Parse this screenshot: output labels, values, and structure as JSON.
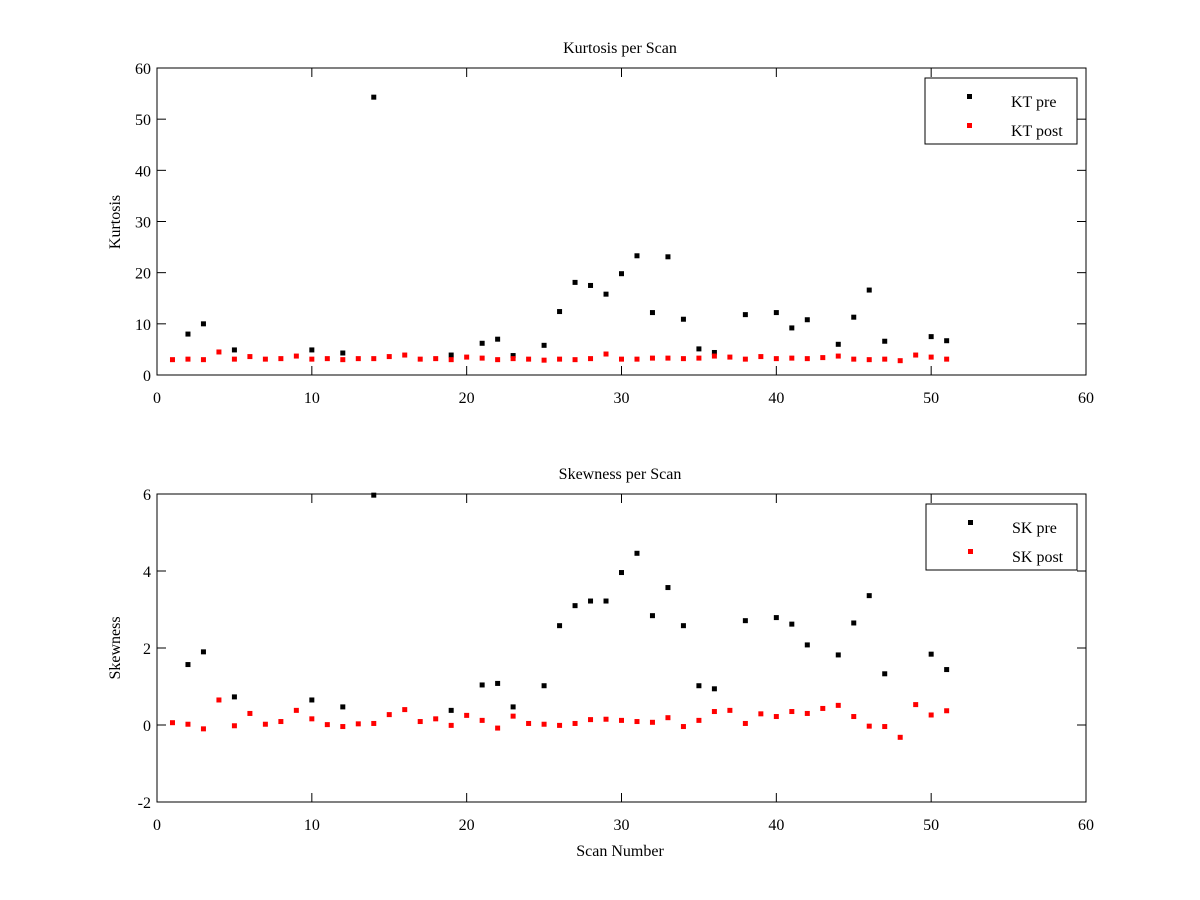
{
  "chart_data": [
    {
      "type": "scatter",
      "title": "Kurtosis per Scan",
      "xlabel": "",
      "ylabel": "Kurtosis",
      "xlim": [
        0,
        60
      ],
      "ylim": [
        0,
        60
      ],
      "xticks": [
        0,
        10,
        20,
        30,
        40,
        50,
        60
      ],
      "yticks": [
        0,
        10,
        20,
        30,
        40,
        50,
        60
      ],
      "legend_position": "top-right",
      "series": [
        {
          "name": "KT pre",
          "color": "#000000",
          "points": [
            [
              2,
              8.0
            ],
            [
              3,
              10.0
            ],
            [
              5,
              4.9
            ],
            [
              10,
              4.9
            ],
            [
              12,
              4.3
            ],
            [
              14,
              54.3
            ],
            [
              19,
              3.9
            ],
            [
              21,
              6.2
            ],
            [
              22,
              7.0
            ],
            [
              23,
              3.8
            ],
            [
              25,
              5.8
            ],
            [
              26,
              12.4
            ],
            [
              27,
              18.1
            ],
            [
              28,
              17.5
            ],
            [
              29,
              15.8
            ],
            [
              30,
              19.8
            ],
            [
              31,
              23.3
            ],
            [
              32,
              12.2
            ],
            [
              33,
              23.1
            ],
            [
              34,
              10.9
            ],
            [
              35,
              5.1
            ],
            [
              36,
              4.4
            ],
            [
              38,
              11.8
            ],
            [
              40,
              12.2
            ],
            [
              41,
              9.2
            ],
            [
              42,
              10.8
            ],
            [
              44,
              6.0
            ],
            [
              45,
              11.3
            ],
            [
              46,
              16.6
            ],
            [
              47,
              6.6
            ],
            [
              50,
              7.5
            ],
            [
              51,
              6.7
            ]
          ]
        },
        {
          "name": "KT post",
          "color": "#ff0000",
          "points": [
            [
              1,
              3.0
            ],
            [
              2,
              3.1
            ],
            [
              3,
              3.0
            ],
            [
              4,
              4.5
            ],
            [
              5,
              3.1
            ],
            [
              6,
              3.6
            ],
            [
              7,
              3.1
            ],
            [
              8,
              3.2
            ],
            [
              9,
              3.7
            ],
            [
              10,
              3.1
            ],
            [
              11,
              3.2
            ],
            [
              12,
              3.0
            ],
            [
              13,
              3.2
            ],
            [
              14,
              3.2
            ],
            [
              15,
              3.6
            ],
            [
              16,
              3.9
            ],
            [
              17,
              3.1
            ],
            [
              18,
              3.2
            ],
            [
              19,
              3.0
            ],
            [
              20,
              3.5
            ],
            [
              21,
              3.3
            ],
            [
              22,
              3.0
            ],
            [
              23,
              3.2
            ],
            [
              24,
              3.1
            ],
            [
              25,
              2.9
            ],
            [
              26,
              3.1
            ],
            [
              27,
              3.0
            ],
            [
              28,
              3.2
            ],
            [
              29,
              4.1
            ],
            [
              30,
              3.1
            ],
            [
              31,
              3.1
            ],
            [
              32,
              3.3
            ],
            [
              33,
              3.3
            ],
            [
              34,
              3.2
            ],
            [
              35,
              3.3
            ],
            [
              36,
              3.7
            ],
            [
              37,
              3.5
            ],
            [
              38,
              3.1
            ],
            [
              39,
              3.6
            ],
            [
              40,
              3.2
            ],
            [
              41,
              3.3
            ],
            [
              42,
              3.2
            ],
            [
              43,
              3.4
            ],
            [
              44,
              3.7
            ],
            [
              45,
              3.1
            ],
            [
              46,
              3.0
            ],
            [
              47,
              3.1
            ],
            [
              48,
              2.8
            ],
            [
              49,
              3.9
            ],
            [
              50,
              3.5
            ],
            [
              51,
              3.1
            ]
          ]
        }
      ]
    },
    {
      "type": "scatter",
      "title": "Skewness per Scan",
      "xlabel": "Scan Number",
      "ylabel": "Skewness",
      "xlim": [
        0,
        60
      ],
      "ylim": [
        -2,
        6
      ],
      "xticks": [
        0,
        10,
        20,
        30,
        40,
        50,
        60
      ],
      "yticks": [
        -2,
        0,
        2,
        4,
        6
      ],
      "legend_position": "top-right",
      "series": [
        {
          "name": "SK pre",
          "color": "#000000",
          "points": [
            [
              2,
              1.57
            ],
            [
              3,
              1.9
            ],
            [
              5,
              0.73
            ],
            [
              10,
              0.65
            ],
            [
              12,
              0.47
            ],
            [
              14,
              5.97
            ],
            [
              19,
              0.38
            ],
            [
              21,
              1.04
            ],
            [
              22,
              1.08
            ],
            [
              23,
              0.47
            ],
            [
              25,
              1.02
            ],
            [
              26,
              2.58
            ],
            [
              27,
              3.1
            ],
            [
              28,
              3.22
            ],
            [
              29,
              3.22
            ],
            [
              30,
              3.96
            ],
            [
              31,
              4.46
            ],
            [
              32,
              2.84
            ],
            [
              33,
              3.57
            ],
            [
              34,
              2.58
            ],
            [
              35,
              1.02
            ],
            [
              36,
              0.94
            ],
            [
              38,
              2.71
            ],
            [
              40,
              2.79
            ],
            [
              41,
              2.62
            ],
            [
              42,
              2.08
            ],
            [
              44,
              1.82
            ],
            [
              45,
              2.65
            ],
            [
              46,
              3.36
            ],
            [
              47,
              1.33
            ],
            [
              50,
              1.84
            ],
            [
              51,
              1.44
            ]
          ]
        },
        {
          "name": "SK post",
          "color": "#ff0000",
          "points": [
            [
              1,
              0.06
            ],
            [
              2,
              0.02
            ],
            [
              3,
              -0.1
            ],
            [
              4,
              0.65
            ],
            [
              5,
              -0.02
            ],
            [
              6,
              0.3
            ],
            [
              7,
              0.02
            ],
            [
              8,
              0.09
            ],
            [
              9,
              0.38
            ],
            [
              10,
              0.16
            ],
            [
              11,
              0.01
            ],
            [
              12,
              -0.04
            ],
            [
              13,
              0.03
            ],
            [
              14,
              0.04
            ],
            [
              15,
              0.27
            ],
            [
              16,
              0.4
            ],
            [
              17,
              0.09
            ],
            [
              18,
              0.16
            ],
            [
              19,
              -0.01
            ],
            [
              20,
              0.25
            ],
            [
              21,
              0.12
            ],
            [
              22,
              -0.08
            ],
            [
              23,
              0.23
            ],
            [
              24,
              0.04
            ],
            [
              25,
              0.02
            ],
            [
              26,
              -0.01
            ],
            [
              27,
              0.04
            ],
            [
              28,
              0.14
            ],
            [
              29,
              0.15
            ],
            [
              30,
              0.12
            ],
            [
              31,
              0.09
            ],
            [
              32,
              0.07
            ],
            [
              33,
              0.19
            ],
            [
              34,
              -0.04
            ],
            [
              35,
              0.12
            ],
            [
              36,
              0.35
            ],
            [
              37,
              0.38
            ],
            [
              38,
              0.04
            ],
            [
              39,
              0.29
            ],
            [
              40,
              0.22
            ],
            [
              41,
              0.35
            ],
            [
              42,
              0.3
            ],
            [
              43,
              0.43
            ],
            [
              44,
              0.51
            ],
            [
              45,
              0.22
            ],
            [
              46,
              -0.03
            ],
            [
              47,
              -0.04
            ],
            [
              48,
              -0.32
            ],
            [
              49,
              0.53
            ],
            [
              50,
              0.26
            ],
            [
              51,
              0.37
            ]
          ]
        }
      ]
    }
  ]
}
